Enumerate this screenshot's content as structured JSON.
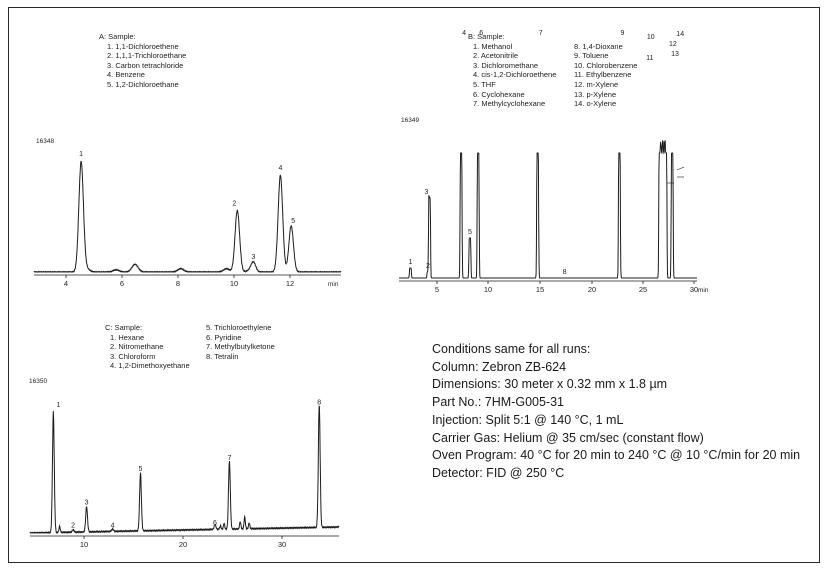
{
  "panel_a": {
    "heading": "A: Sample:",
    "compounds": [
      "1. 1,1-Dichloroethene",
      "2. 1,1,1-Trichloroethane",
      "3. Carbon tetrachloride",
      "4. Benzene",
      "5. 1,2-Dichloroethane"
    ],
    "code": "16348",
    "x_ticks": [
      "4",
      "6",
      "8",
      "10",
      "12"
    ],
    "x_unit": "min",
    "peak_labels": [
      "1",
      "2",
      "3",
      "4",
      "5"
    ]
  },
  "panel_b": {
    "heading": "B: Sample:",
    "compounds_left": [
      "1. Methanol",
      "2. Acetonitrile",
      "3. Dichloromethane",
      "4. cis-1,2-Dichloroethene",
      "5. THF",
      "6. Cyclohexane",
      "7. Methylcyclohexane"
    ],
    "compounds_right": [
      "8. 1,4-Dioxane",
      "9. Toluene",
      "10. Chlorobenzene",
      "11. Ethylbenzene",
      "12. m-Xylene",
      "13. p-Xylene",
      "14. o-Xylene"
    ],
    "code": "16349",
    "x_ticks": [
      "5",
      "10",
      "15",
      "20",
      "25",
      "30"
    ],
    "x_unit": "min",
    "peak_labels": [
      "1",
      "2",
      "3",
      "4",
      "5",
      "6",
      "7",
      "8",
      "9",
      "10",
      "11",
      "12",
      "13",
      "14"
    ]
  },
  "panel_c": {
    "heading": "C: Sample:",
    "compounds_left": [
      "1. Hexane",
      "2. Nitromethane",
      "3. Chloroform",
      "4. 1,2-Dimethoxyethane"
    ],
    "compounds_right": [
      "5. Trichloroethylene",
      "6. Pyridine",
      "7. Methylbutylketone",
      "8. Tetralin"
    ],
    "code": "16350",
    "x_ticks": [
      "10",
      "20",
      "30"
    ],
    "peak_labels": [
      "1",
      "2",
      "3",
      "4",
      "5",
      "6",
      "7",
      "8"
    ]
  },
  "conditions": {
    "heading": "Conditions same for all runs:",
    "column": "Column:  Zebron ZB-624",
    "dimensions": "Dimensions:  30 meter x 0.32 mm x 1.8 µm",
    "part_no": "Part No.:  7HM-G005-31",
    "injection": "Injection:  Split 5:1 @ 140 °C, 1 mL",
    "carrier_gas": "Carrier Gas:  Helium @ 35 cm/sec (constant flow)",
    "oven_program": "Oven Program:  40 °C for 20 min to 240 °C @ 10 °C/min for 20 min",
    "detector": "Detector:  FID @ 250 °C"
  },
  "chart_data": [
    {
      "type": "line",
      "panel": "A",
      "x_unit": "min",
      "xlim": [
        2.3,
        13.7
      ],
      "x_ticks": [
        4,
        6,
        8,
        10,
        12
      ],
      "baseline_peaks_min": [
        4.25,
        5.35,
        6.05,
        7.75,
        9.45,
        10.35
      ],
      "peaks": [
        {
          "label": "1",
          "time_min": 4.05,
          "height_rel": 1.0
        },
        {
          "label": "2",
          "time_min": 9.85,
          "height_rel": 0.56
        },
        {
          "label": "3",
          "time_min": 10.45,
          "height_rel": 0.08
        },
        {
          "label": "4",
          "time_min": 11.45,
          "height_rel": 0.88
        },
        {
          "label": "5",
          "time_min": 11.85,
          "height_rel": 0.42
        }
      ]
    },
    {
      "type": "line",
      "panel": "B",
      "x_unit": "min",
      "xlim": [
        2.2,
        31.0
      ],
      "x_ticks": [
        5,
        10,
        15,
        20,
        25,
        30
      ],
      "peaks": [
        {
          "label": "1",
          "time_min": 3.3,
          "height_rel": 0.08
        },
        {
          "label": "2",
          "time_min": 5.0,
          "height_rel": 0.05
        },
        {
          "label": "3",
          "time_min": 5.15,
          "height_rel": 0.64
        },
        {
          "label": "4",
          "time_min": 8.2,
          "height_rel": 1.0
        },
        {
          "label": "5",
          "time_min": 9.05,
          "height_rel": 0.32
        },
        {
          "label": "6",
          "time_min": 9.85,
          "height_rel": 1.0
        },
        {
          "label": "7",
          "time_min": 15.6,
          "height_rel": 1.0
        },
        {
          "label": "8",
          "time_min": 18.2,
          "height_rel": 0.0
        },
        {
          "label": "9",
          "time_min": 23.5,
          "height_rel": 1.0
        },
        {
          "label": "10",
          "time_min": 27.4,
          "height_rel": 1.0
        },
        {
          "label": "11",
          "time_min": 27.6,
          "height_rel": 1.0
        },
        {
          "label": "12",
          "time_min": 27.8,
          "height_rel": 1.0
        },
        {
          "label": "13",
          "time_min": 28.0,
          "height_rel": 1.0
        },
        {
          "label": "14",
          "time_min": 28.6,
          "height_rel": 1.0
        }
      ]
    },
    {
      "type": "line",
      "panel": "C",
      "xlim": [
        3.0,
        37.4
      ],
      "x_ticks": [
        10,
        20,
        30
      ],
      "peaks": [
        {
          "label": "1",
          "time_min": 5.6,
          "height_rel": 1.0
        },
        {
          "label": "2",
          "time_min": 7.8,
          "height_rel": 0.02
        },
        {
          "label": "3",
          "time_min": 9.3,
          "height_rel": 0.21
        },
        {
          "label": "4",
          "time_min": 12.2,
          "height_rel": 0.02
        },
        {
          "label": "5",
          "time_min": 15.3,
          "height_rel": 0.48
        },
        {
          "label": "6",
          "time_min": 23.6,
          "height_rel": 0.04
        },
        {
          "label": "7",
          "time_min": 25.2,
          "height_rel": 0.56
        },
        {
          "label": "8",
          "time_min": 35.2,
          "height_rel": 1.02
        }
      ]
    }
  ]
}
